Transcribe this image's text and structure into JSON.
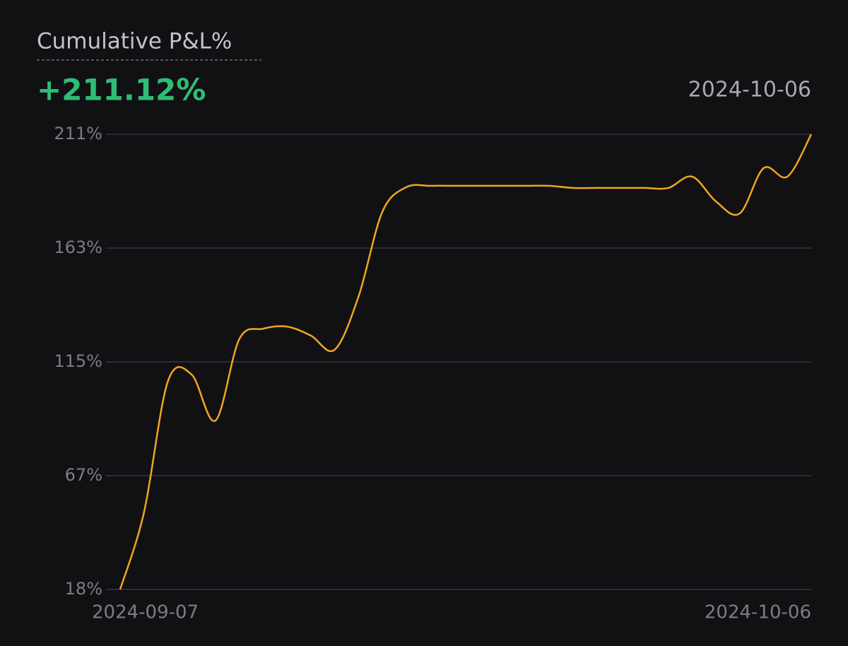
{
  "chart_data": {
    "type": "line",
    "title": "Cumulative P&L%",
    "headline_value": "+211.12%",
    "date": "2024-10-06",
    "x": [
      "2024-09-07",
      null,
      null,
      null,
      null,
      null,
      null,
      null,
      null,
      null,
      null,
      null,
      null,
      null,
      null,
      null,
      null,
      null,
      null,
      null,
      null,
      null,
      null,
      null,
      null,
      null,
      null,
      null,
      null,
      "2024-10-06"
    ],
    "series": [
      {
        "name": "Cumulative P&L%",
        "color": "#f0a51f",
        "values": [
          18.4,
          51,
          106.4,
          109.4,
          89.9,
          124.4,
          128.8,
          129.7,
          125.9,
          119.9,
          142.3,
          178.2,
          188.7,
          189.3,
          189.3,
          189.3,
          189.3,
          189.3,
          189.3,
          188.4,
          188.4,
          188.4,
          188.4,
          188.4,
          193.2,
          182.7,
          177.6,
          196.8,
          193.2,
          211.12
        ]
      }
    ],
    "ylim": [
      18.4,
      211.12
    ],
    "yticks": [
      {
        "value": 18.4,
        "label": "18%"
      },
      {
        "value": 66.58,
        "label": "67%"
      },
      {
        "value": 114.76,
        "label": "115%"
      },
      {
        "value": 162.94,
        "label": "163%"
      },
      {
        "value": 211.12,
        "label": "211%"
      }
    ],
    "grid": true
  }
}
